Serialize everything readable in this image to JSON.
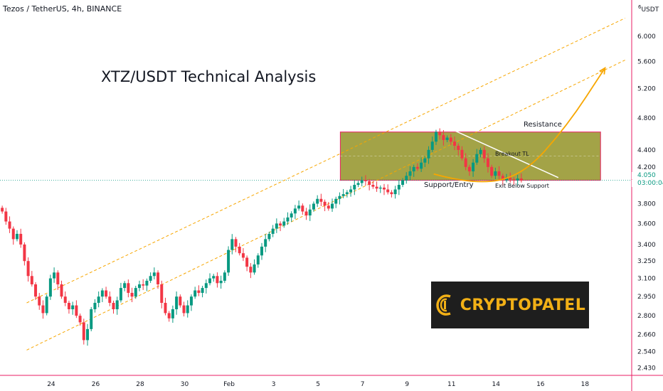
{
  "header": {
    "symbol_line": "Tezos / TetherUS, 4h, BINANCE"
  },
  "title": "XTZ/USDT Technical Analysis",
  "axis": {
    "unit": "USDT",
    "unit_prefix": "6"
  },
  "current_price": {
    "value": "4.050",
    "countdown": "03:00:04",
    "color": "#089981"
  },
  "annotations": {
    "resistance": "Resistance",
    "breakout_tl": "Breakout TL",
    "support_entry": "Support/Entry",
    "exit_below_support": "Exit Below Support"
  },
  "logo": {
    "text": "CRYPTOPATEL",
    "icon": "coin-c-icon"
  },
  "colors": {
    "up": "#089981",
    "down": "#f23645",
    "zone_fill": "#808000",
    "zone_border": "#e91e63",
    "channel": "#f7a600",
    "arrow": "#f7a600",
    "trendline": "#ffffff"
  },
  "chart_data": {
    "type": "candlestick",
    "timeframe": "4h",
    "y_scale": "log",
    "ylim": [
      2.38,
      6.62
    ],
    "y_ticks": [
      2.43,
      2.54,
      2.66,
      2.8,
      2.95,
      3.1,
      3.25,
      3.4,
      3.6,
      3.8,
      4.05,
      4.2,
      4.4,
      4.8,
      5.2,
      5.6,
      6.0
    ],
    "y_tick_labels": [
      "2.430",
      "2.540",
      "2.660",
      "2.800",
      "2.950",
      "3.100",
      "3.250",
      "3.400",
      "3.600",
      "3.800",
      "",
      "4.200",
      "4.400",
      "4.800",
      "5.200",
      "5.600",
      "6.000"
    ],
    "x_ticks": [
      24,
      26,
      28,
      30,
      32,
      34,
      36,
      38,
      40,
      42,
      44,
      46,
      48
    ],
    "x_tick_labels": [
      "24",
      "26",
      "28",
      "30",
      "Feb",
      "3",
      "5",
      "7",
      "9",
      "11",
      "14",
      "16",
      "18"
    ],
    "xlim": [
      21.7,
      50.1
    ],
    "candles_x_start": 21.8,
    "candles_x_step": 0.1667,
    "closes": [
      3.72,
      3.62,
      3.55,
      3.45,
      3.5,
      3.4,
      3.25,
      3.12,
      3.05,
      2.95,
      2.88,
      2.82,
      2.95,
      3.1,
      3.15,
      3.05,
      2.95,
      2.9,
      2.85,
      2.88,
      2.8,
      2.75,
      2.62,
      2.7,
      2.85,
      2.9,
      2.95,
      3.0,
      2.95,
      2.9,
      2.85,
      2.92,
      3.02,
      3.06,
      2.98,
      2.95,
      3.02,
      3.05,
      3.04,
      3.08,
      3.12,
      3.15,
      3.05,
      2.9,
      2.82,
      2.78,
      2.85,
      2.95,
      2.88,
      2.82,
      2.88,
      2.95,
      3.0,
      2.98,
      3.02,
      3.06,
      3.1,
      3.12,
      3.06,
      3.08,
      3.15,
      3.35,
      3.45,
      3.38,
      3.32,
      3.28,
      3.2,
      3.15,
      3.22,
      3.3,
      3.38,
      3.45,
      3.5,
      3.55,
      3.6,
      3.58,
      3.62,
      3.66,
      3.7,
      3.75,
      3.78,
      3.72,
      3.68,
      3.74,
      3.8,
      3.85,
      3.82,
      3.78,
      3.75,
      3.8,
      3.85,
      3.88,
      3.9,
      3.92,
      3.95,
      4.0,
      4.02,
      4.05,
      4.04,
      4.0,
      3.98,
      3.96,
      3.97,
      3.95,
      3.92,
      3.9,
      3.95,
      4.0,
      4.05,
      4.1,
      4.15,
      4.2,
      4.18,
      4.25,
      4.3,
      4.4,
      4.5,
      4.62,
      4.58,
      4.52,
      4.55,
      4.5,
      4.45,
      4.4,
      4.3,
      4.2,
      4.15,
      4.25,
      4.35,
      4.4,
      4.3,
      4.2,
      4.1,
      4.15,
      4.1,
      4.05,
      4.08,
      4.06,
      4.05,
      4.07,
      4.05
    ],
    "channel_upper": {
      "from": [
        22.9,
        2.9
      ],
      "to": [
        49.8,
        6.3
      ]
    },
    "channel_lower": {
      "from": [
        22.9,
        2.55
      ],
      "to": [
        49.8,
        5.62
      ]
    },
    "zone": {
      "x": [
        37.0,
        48.7
      ],
      "y": [
        4.05,
        4.62
      ]
    },
    "breakout_tl": {
      "from": [
        41.8,
        4.68
      ],
      "to": [
        46.8,
        4.08
      ]
    },
    "arrow_path": [
      [
        41.2,
        4.12
      ],
      [
        43.0,
        4.0
      ],
      [
        45.2,
        4.1
      ],
      [
        47.2,
        4.7
      ],
      [
        48.9,
        5.5
      ]
    ]
  }
}
